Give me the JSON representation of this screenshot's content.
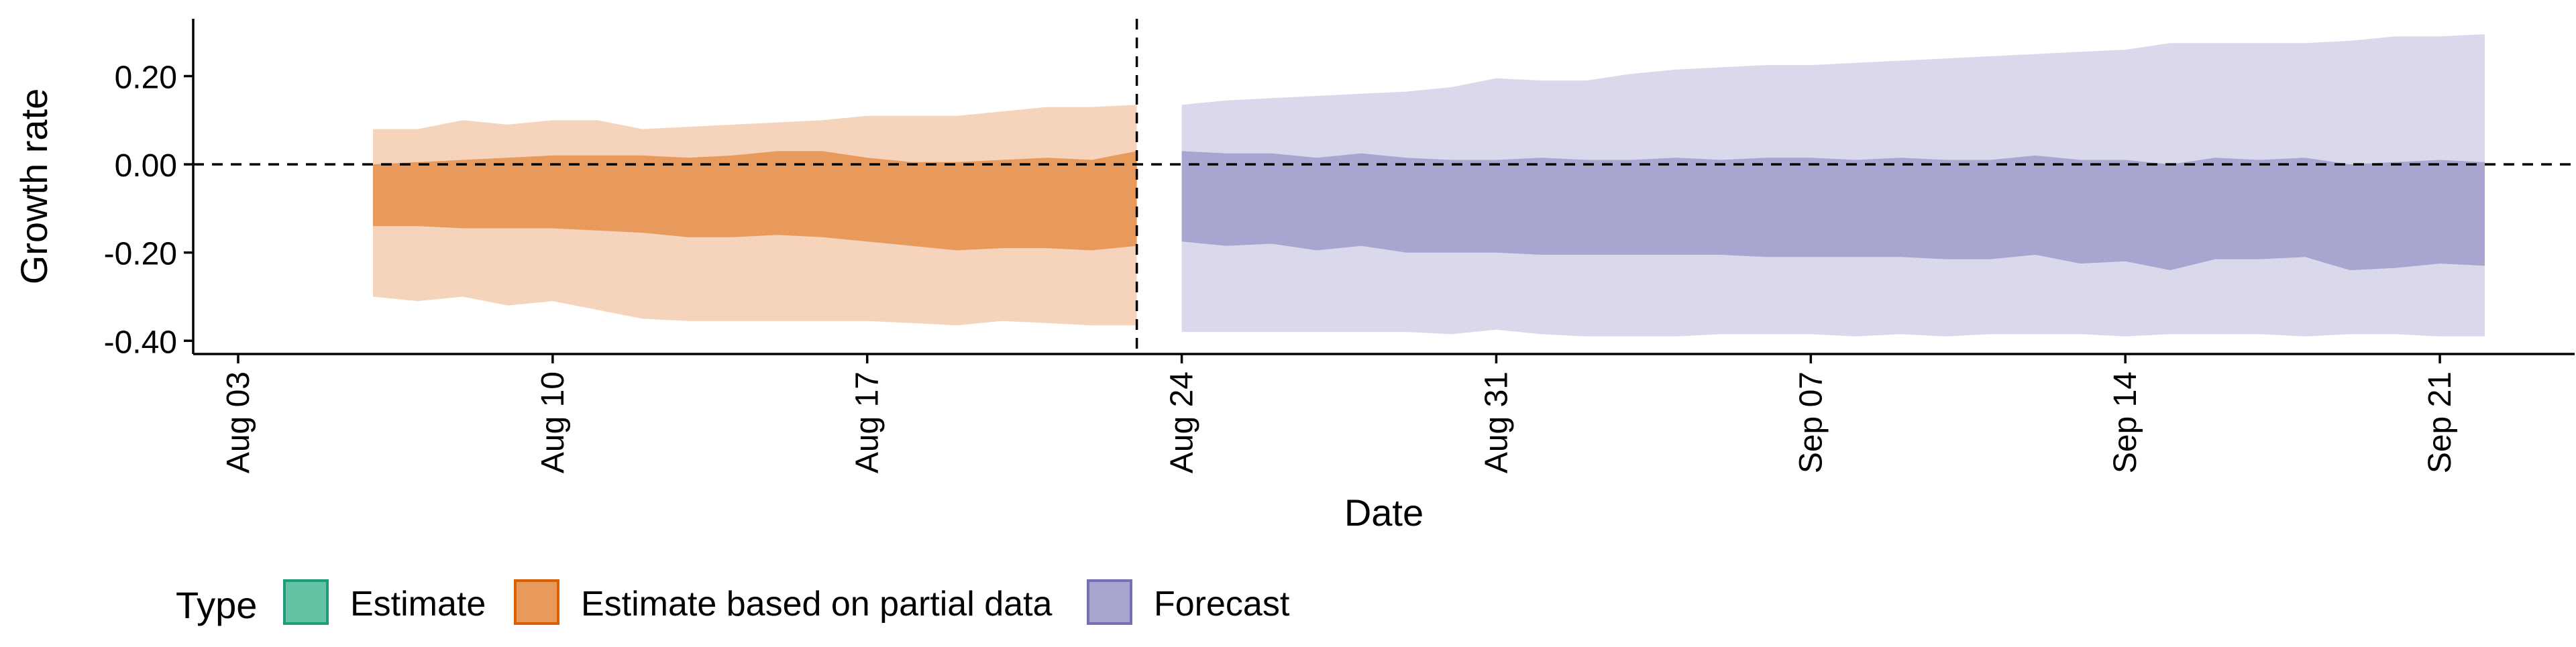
{
  "chart_data": {
    "type": "area",
    "title": "",
    "xlabel": "Date",
    "ylabel": "Growth rate",
    "x_ticks": [
      "Aug 03",
      "Aug 10",
      "Aug 17",
      "Aug 24",
      "Aug 31",
      "Sep 07",
      "Sep 14",
      "Sep 21"
    ],
    "y_ticks": [
      "0.20",
      "0.00",
      "-0.20",
      "-0.40"
    ],
    "xlim": [
      "2020-08-02",
      "2020-09-24"
    ],
    "ylim": [
      -0.43,
      0.33
    ],
    "reference_lines": {
      "horizontal_y": 0.0,
      "vertical_date": "2020-08-23",
      "style": "dashed"
    },
    "legend": {
      "title": "Type",
      "position": "bottom-left",
      "entries": [
        {
          "label": "Estimate",
          "color": "#66c2a5",
          "border": "#1b9e77"
        },
        {
          "label": "Estimate based on partial data",
          "color": "#e8995c",
          "border": "#d95f02"
        },
        {
          "label": "Forecast",
          "color": "#a8a5d1",
          "border": "#7570b3"
        }
      ]
    },
    "series": [
      {
        "name": "Estimate based on partial data",
        "type": "ribbon",
        "dates": [
          "2020-08-06",
          "2020-08-07",
          "2020-08-08",
          "2020-08-09",
          "2020-08-10",
          "2020-08-11",
          "2020-08-12",
          "2020-08-13",
          "2020-08-14",
          "2020-08-15",
          "2020-08-16",
          "2020-08-17",
          "2020-08-18",
          "2020-08-19",
          "2020-08-20",
          "2020-08-21",
          "2020-08-22",
          "2020-08-23"
        ],
        "outer_lower": [
          -0.3,
          -0.31,
          -0.3,
          -0.32,
          -0.31,
          -0.33,
          -0.35,
          -0.355,
          -0.355,
          -0.355,
          -0.355,
          -0.355,
          -0.36,
          -0.365,
          -0.355,
          -0.36,
          -0.365,
          -0.365
        ],
        "outer_upper": [
          0.08,
          0.08,
          0.1,
          0.09,
          0.1,
          0.1,
          0.08,
          0.085,
          0.09,
          0.095,
          0.1,
          0.11,
          0.11,
          0.11,
          0.12,
          0.13,
          0.13,
          0.135
        ],
        "inner_lower": [
          -0.14,
          -0.14,
          -0.145,
          -0.145,
          -0.145,
          -0.15,
          -0.155,
          -0.165,
          -0.165,
          -0.16,
          -0.165,
          -0.175,
          -0.185,
          -0.195,
          -0.19,
          -0.19,
          -0.195,
          -0.185
        ],
        "inner_upper": [
          0.0,
          0.005,
          0.01,
          0.015,
          0.02,
          0.02,
          0.02,
          0.015,
          0.02,
          0.03,
          0.03,
          0.015,
          0.005,
          0.005,
          0.01,
          0.015,
          0.01,
          0.03
        ]
      },
      {
        "name": "Forecast",
        "type": "ribbon",
        "dates": [
          "2020-08-24",
          "2020-08-25",
          "2020-08-26",
          "2020-08-27",
          "2020-08-28",
          "2020-08-29",
          "2020-08-30",
          "2020-08-31",
          "2020-09-01",
          "2020-09-02",
          "2020-09-03",
          "2020-09-04",
          "2020-09-05",
          "2020-09-06",
          "2020-09-07",
          "2020-09-08",
          "2020-09-09",
          "2020-09-10",
          "2020-09-11",
          "2020-09-12",
          "2020-09-13",
          "2020-09-14",
          "2020-09-15",
          "2020-09-16",
          "2020-09-17",
          "2020-09-18",
          "2020-09-19",
          "2020-09-20",
          "2020-09-21",
          "2020-09-22"
        ],
        "outer_lower": [
          -0.38,
          -0.38,
          -0.38,
          -0.38,
          -0.38,
          -0.38,
          -0.385,
          -0.375,
          -0.385,
          -0.39,
          -0.39,
          -0.39,
          -0.385,
          -0.385,
          -0.385,
          -0.39,
          -0.385,
          -0.39,
          -0.385,
          -0.385,
          -0.385,
          -0.39,
          -0.385,
          -0.385,
          -0.385,
          -0.39,
          -0.385,
          -0.385,
          -0.39,
          -0.39
        ],
        "outer_upper": [
          0.135,
          0.145,
          0.15,
          0.155,
          0.16,
          0.165,
          0.175,
          0.195,
          0.19,
          0.19,
          0.205,
          0.215,
          0.22,
          0.225,
          0.225,
          0.23,
          0.235,
          0.24,
          0.245,
          0.25,
          0.255,
          0.26,
          0.275,
          0.275,
          0.275,
          0.275,
          0.28,
          0.29,
          0.29,
          0.295
        ],
        "inner_lower": [
          -0.175,
          -0.185,
          -0.18,
          -0.195,
          -0.185,
          -0.2,
          -0.2,
          -0.2,
          -0.205,
          -0.205,
          -0.205,
          -0.205,
          -0.205,
          -0.21,
          -0.21,
          -0.21,
          -0.21,
          -0.215,
          -0.215,
          -0.205,
          -0.225,
          -0.22,
          -0.24,
          -0.215,
          -0.215,
          -0.21,
          -0.24,
          -0.235,
          -0.225,
          -0.23
        ],
        "inner_upper": [
          0.03,
          0.025,
          0.025,
          0.015,
          0.025,
          0.015,
          0.01,
          0.01,
          0.015,
          0.01,
          0.01,
          0.015,
          0.01,
          0.015,
          0.015,
          0.01,
          0.015,
          0.01,
          0.01,
          0.02,
          0.01,
          0.01,
          0.0,
          0.015,
          0.01,
          0.015,
          0.0,
          0.005,
          0.01,
          0.005
        ]
      }
    ]
  }
}
